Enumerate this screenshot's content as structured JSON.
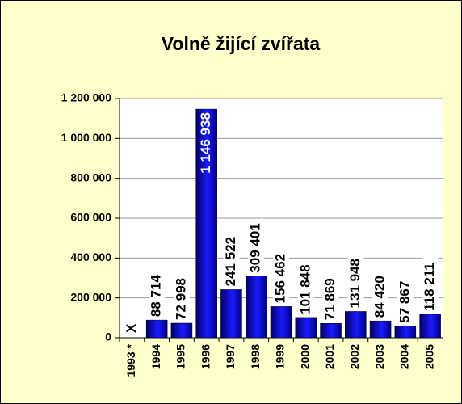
{
  "chart_data": {
    "type": "bar",
    "title": "Volně žijící zvířata",
    "categories": [
      "1993 *",
      "1994",
      "1995",
      "1996",
      "1997",
      "1998",
      "1999",
      "2000",
      "2001",
      "2002",
      "2003",
      "2004",
      "2005"
    ],
    "values": [
      null,
      88714,
      72998,
      1146938,
      241522,
      309401,
      156462,
      101848,
      71869,
      131948,
      84420,
      57867,
      118211
    ],
    "value_labels": [
      "X",
      "88 714",
      "72 998",
      "1 146 938",
      "241 522",
      "309 401",
      "156 462",
      "101 848",
      "71 869",
      "131 948",
      "84 420",
      "57 867",
      "118 211"
    ],
    "color": "#1a1aff",
    "ylim": [
      0,
      1200000
    ],
    "yticks": [
      0,
      {
        "value": 200000,
        "label": "200 000"
      },
      {
        "value": 400000,
        "label": "400 000"
      },
      {
        "value": 600000,
        "label": "600 000"
      },
      {
        "value": 800000,
        "label": "800 000"
      },
      {
        "value": 1000000,
        "label": "1 000 000"
      },
      {
        "value": 1200000,
        "label": "1 200 000"
      }
    ],
    "grid": true
  }
}
